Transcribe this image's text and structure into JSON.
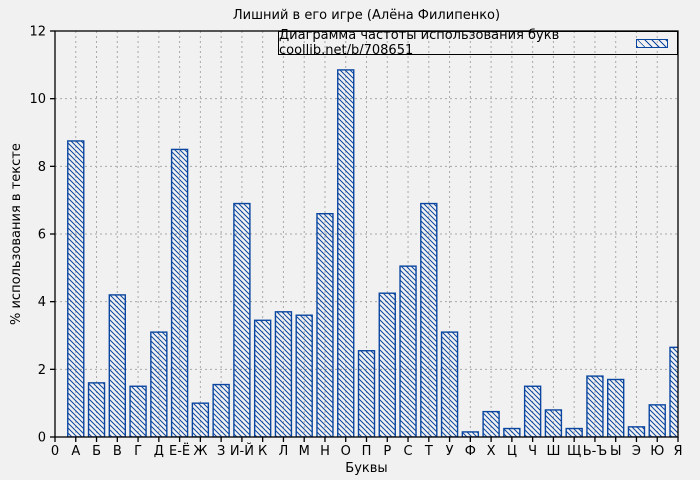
{
  "chart_data": {
    "type": "bar",
    "title": "Лишний в его игре (Алёна Филипенко)",
    "legend_label": "Диаграмма частоты использования букв coollib.net/b/708651",
    "xlabel": "Буквы",
    "ylabel": "% использования в тексте",
    "origin_label": "0",
    "categories": [
      "А",
      "Б",
      "В",
      "Г",
      "Д",
      "Е-Ё",
      "Ж",
      "З",
      "И-Й",
      "К",
      "Л",
      "М",
      "Н",
      "О",
      "П",
      "Р",
      "С",
      "Т",
      "У",
      "Ф",
      "Х",
      "Ц",
      "Ч",
      "Ш",
      "Щ",
      "Ь-Ъ",
      "Ы",
      "Э",
      "Ю",
      "Я"
    ],
    "values": [
      8.75,
      1.6,
      4.2,
      1.5,
      3.1,
      8.5,
      1.0,
      1.55,
      6.9,
      3.45,
      3.7,
      3.6,
      6.6,
      10.85,
      2.55,
      4.25,
      5.05,
      6.9,
      3.1,
      0.15,
      0.75,
      0.25,
      1.5,
      0.8,
      0.25,
      1.8,
      1.7,
      0.3,
      0.95,
      2.65
    ],
    "ylim": [
      0,
      12
    ],
    "ytick_step": 2,
    "ytick_labels": [
      "0",
      "2",
      "4",
      "6",
      "8",
      "10",
      "12"
    ],
    "grid": true,
    "legend_position": "top-right",
    "hatch": "diagonal-backslash",
    "colors": {
      "bar": "#0a46a0",
      "grid": "#a9a9a9",
      "frame": "#000000",
      "background": "#f1f1f1",
      "text": "#000000"
    }
  }
}
